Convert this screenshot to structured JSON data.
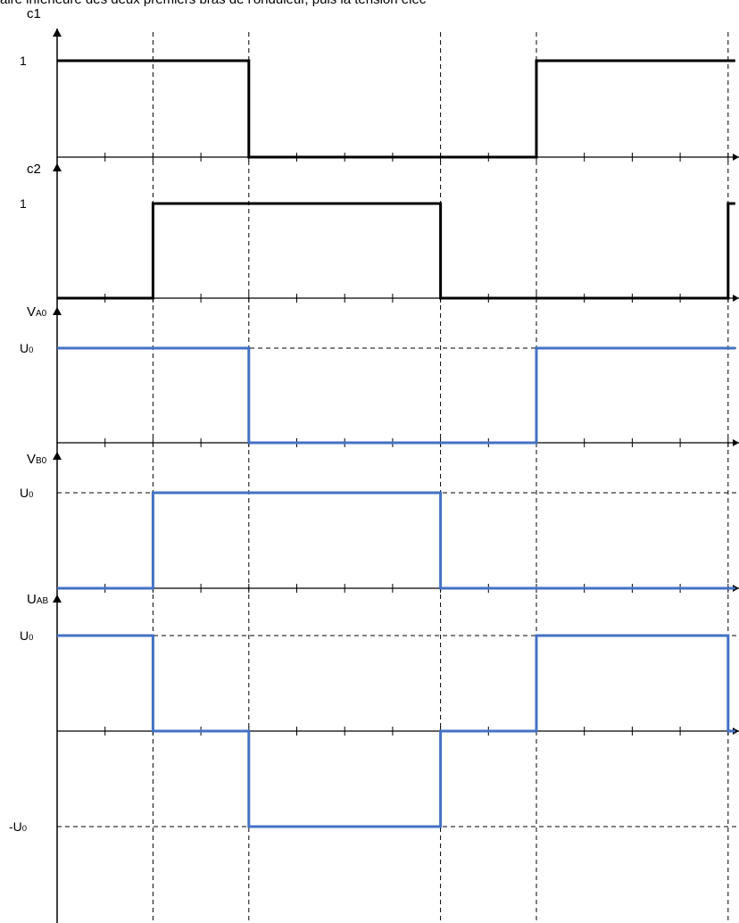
{
  "caption": "aire inférieure des deux premiers bras de l'onduleur, puis la tension élec",
  "chart_data": {
    "type": "line",
    "step": true,
    "x_unit_ticks": [
      0,
      1,
      2,
      3,
      4,
      5,
      6,
      7,
      8,
      9,
      10,
      11,
      12,
      13,
      14
    ],
    "x_dashed_verticals": [
      2,
      4,
      8,
      10,
      14
    ],
    "colors": {
      "command": "#000000",
      "voltage": "#4472c4",
      "axis": "#000000",
      "grid": "#000000"
    },
    "panels": [
      {
        "id": "c1",
        "ylabel": "c1",
        "ylabel_sub": "",
        "ylim": [
          0,
          1
        ],
        "level_labels": [
          {
            "value": 1,
            "text": "1",
            "sub": "",
            "dashed": false
          }
        ],
        "color_key": "command",
        "series": [
          {
            "x": [
              0,
              4,
              10,
              14
            ],
            "y": [
              1,
              0,
              1,
              1
            ]
          }
        ]
      },
      {
        "id": "c2",
        "ylabel": "c2",
        "ylabel_sub": "",
        "ylim": [
          0,
          1
        ],
        "level_labels": [
          {
            "value": 1,
            "text": "1",
            "sub": "",
            "dashed": false
          }
        ],
        "color_key": "command",
        "series": [
          {
            "x": [
              0,
              2,
              8,
              14
            ],
            "y": [
              0,
              1,
              0,
              1
            ]
          }
        ]
      },
      {
        "id": "VA0",
        "ylabel": "V",
        "ylabel_sub": "A0",
        "ylim": [
          0,
          1
        ],
        "level_labels": [
          {
            "value": 1,
            "text": "U",
            "sub": "0",
            "dashed": true
          }
        ],
        "color_key": "voltage",
        "series": [
          {
            "x": [
              0,
              4,
              10,
              14
            ],
            "y": [
              1,
              0,
              1,
              1
            ]
          }
        ]
      },
      {
        "id": "VB0",
        "ylabel": "V",
        "ylabel_sub": "B0",
        "ylim": [
          0,
          1
        ],
        "level_labels": [
          {
            "value": 1,
            "text": "U",
            "sub": "0",
            "dashed": true
          }
        ],
        "color_key": "voltage",
        "series": [
          {
            "x": [
              0,
              2,
              8,
              14
            ],
            "y": [
              0,
              1,
              0,
              0
            ]
          }
        ]
      },
      {
        "id": "UAB",
        "ylabel": "U",
        "ylabel_sub": "AB",
        "ylim": [
          -1,
          1
        ],
        "level_labels": [
          {
            "value": 1,
            "text": "U",
            "sub": "0",
            "dashed": true
          },
          {
            "value": -1,
            "text": "-U",
            "sub": "0",
            "dashed": true
          }
        ],
        "color_key": "voltage",
        "series": [
          {
            "x": [
              0,
              2,
              4,
              8,
              10,
              14
            ],
            "y": [
              1,
              0,
              -1,
              0,
              1,
              0
            ]
          }
        ]
      }
    ]
  }
}
